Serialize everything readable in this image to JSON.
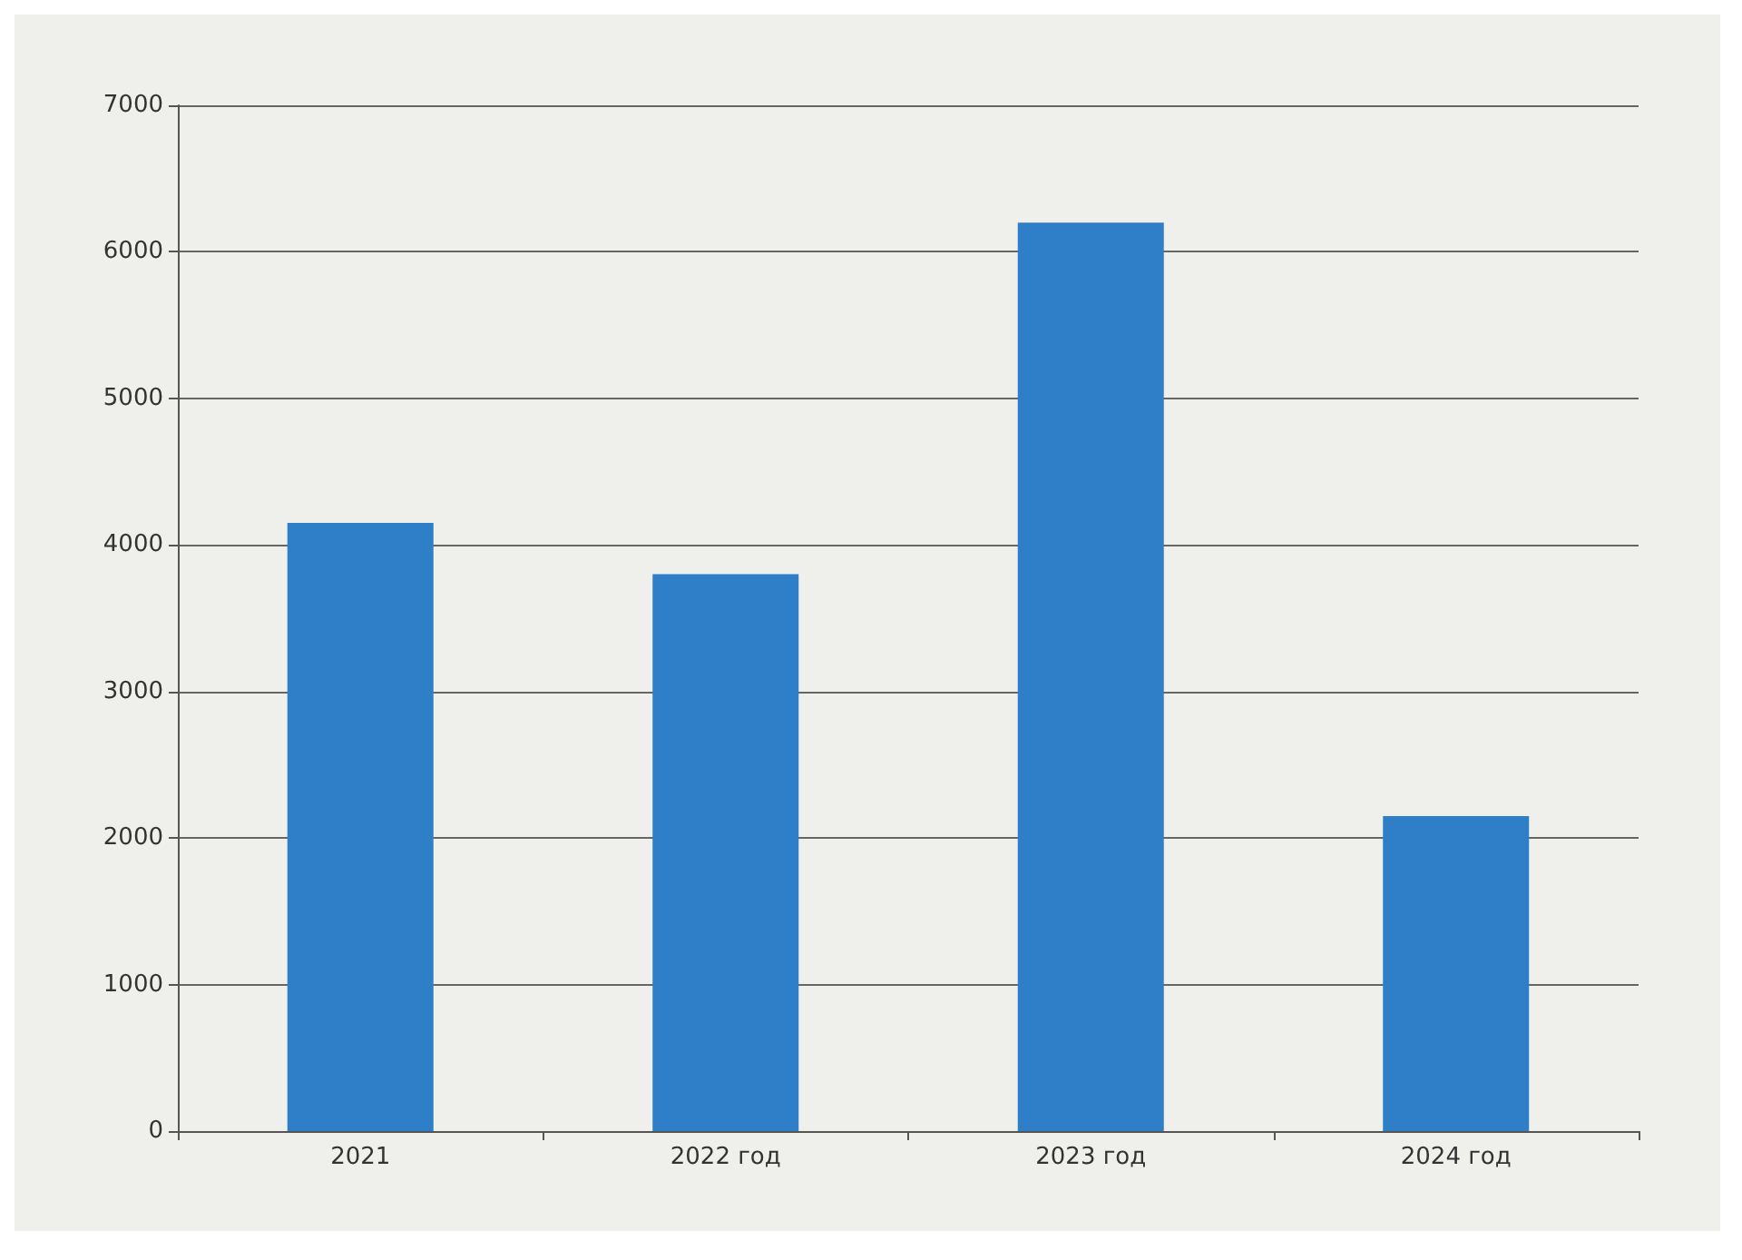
{
  "chart_data": {
    "type": "bar",
    "categories": [
      "2021",
      "2022 год",
      "2023 год",
      "2024 год"
    ],
    "values": [
      4150,
      3800,
      6200,
      2150
    ],
    "color": "#2f7fc8",
    "ylim": [
      0,
      7000
    ],
    "yticks": [
      0,
      1000,
      2000,
      3000,
      4000,
      5000,
      6000,
      7000
    ],
    "grid": "y"
  }
}
